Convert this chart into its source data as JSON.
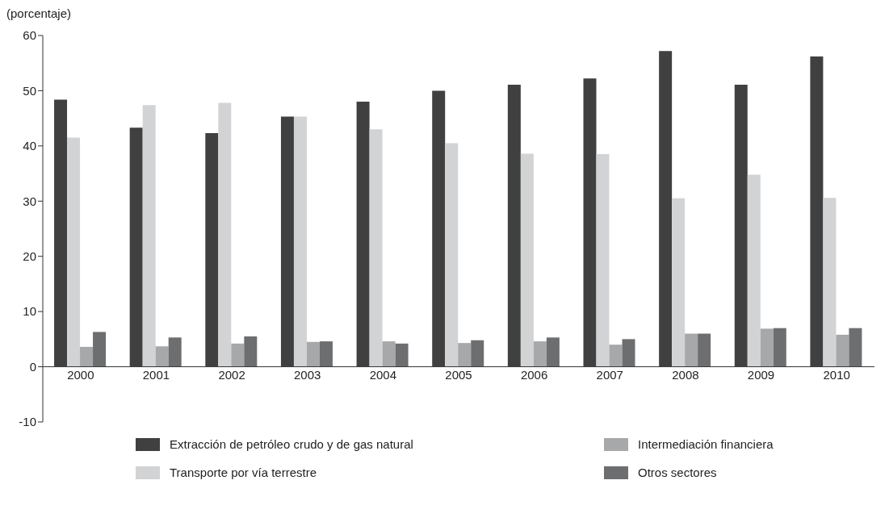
{
  "chart_data": {
    "type": "bar",
    "ylabel": "(porcentaje)",
    "categories": [
      "2000",
      "2001",
      "2002",
      "2003",
      "2004",
      "2005",
      "2006",
      "2007",
      "2008",
      "2009",
      "2010"
    ],
    "series": [
      {
        "name": "Extracción de petróleo crudo y de gas natural",
        "color": "#404040",
        "values": [
          48.4,
          43.3,
          42.3,
          45.3,
          48.0,
          50.0,
          51.1,
          52.2,
          57.2,
          51.1,
          56.2
        ]
      },
      {
        "name": "Transporte por vía terrestre",
        "color": "#d2d3d5",
        "values": [
          41.5,
          47.4,
          47.8,
          45.3,
          43.0,
          40.5,
          38.6,
          38.5,
          30.5,
          34.8,
          30.6
        ]
      },
      {
        "name": "Intermediación financiera",
        "color": "#a7a8aa",
        "values": [
          3.6,
          3.7,
          4.2,
          4.5,
          4.6,
          4.3,
          4.6,
          4.0,
          6.0,
          6.9,
          5.8
        ]
      },
      {
        "name": "Otros sectores",
        "color": "#6d6e70",
        "values": [
          6.3,
          5.3,
          5.5,
          4.6,
          4.2,
          4.8,
          5.3,
          5.0,
          6.0,
          7.0,
          7.0
        ]
      }
    ],
    "ylim": [
      -10,
      60
    ],
    "yticks": [
      -10,
      0,
      10,
      20,
      30,
      40,
      50,
      60
    ],
    "grid": false,
    "legend": "bottom"
  }
}
